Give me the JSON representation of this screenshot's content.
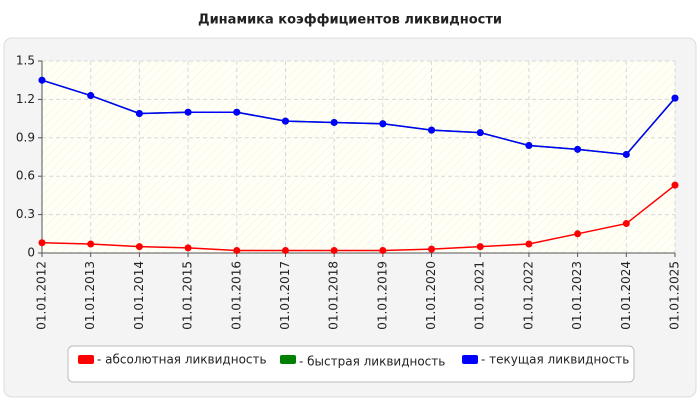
{
  "chart_data": {
    "type": "line",
    "title": "Динамика коэффициентов ликвидности",
    "categories": [
      "01.01.2012",
      "01.01.2013",
      "01.01.2014",
      "01.01.2015",
      "01.01.2016",
      "01.01.2017",
      "01.01.2018",
      "01.01.2019",
      "01.01.2020",
      "01.01.2021",
      "01.01.2022",
      "01.01.2023",
      "01.01.2024",
      "01.01.2025"
    ],
    "series": [
      {
        "name": "- абсолютная ликвидность",
        "color": "#ff0000",
        "values": [
          0.08,
          0.07,
          0.05,
          0.04,
          0.02,
          0.02,
          0.02,
          0.02,
          0.03,
          0.05,
          0.07,
          0.15,
          0.23,
          0.53
        ]
      },
      {
        "name": "- быстрая ликвидность",
        "color": "#008000",
        "values": [
          1.35,
          1.23,
          1.09,
          1.1,
          1.1,
          1.03,
          1.02,
          1.01,
          0.96,
          0.94,
          0.84,
          0.81,
          0.77,
          1.21
        ]
      },
      {
        "name": "- текущая ликвидность",
        "color": "#0000ff",
        "values": [
          1.35,
          1.23,
          1.09,
          1.1,
          1.1,
          1.03,
          1.02,
          1.01,
          0.96,
          0.94,
          0.84,
          0.81,
          0.77,
          1.21
        ]
      }
    ],
    "ylim": [
      0,
      1.5
    ],
    "yticks": [
      0,
      0.3,
      0.6,
      0.9,
      1.2,
      1.5
    ],
    "grid": true
  }
}
